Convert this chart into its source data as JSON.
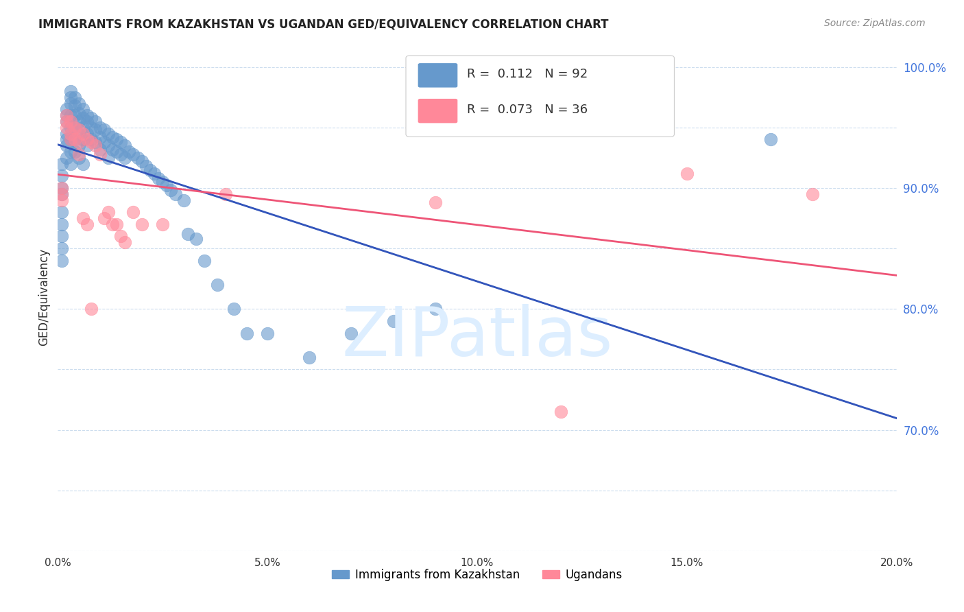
{
  "title": "IMMIGRANTS FROM KAZAKHSTAN VS UGANDAN GED/EQUIVALENCY CORRELATION CHART",
  "source": "Source: ZipAtlas.com",
  "ylabel": "GED/Equivalency",
  "legend_label_1": "Immigrants from Kazakhstan",
  "legend_label_2": "Ugandans",
  "R1": 0.112,
  "N1": 92,
  "R2": 0.073,
  "N2": 36,
  "x_min": 0.0,
  "x_max": 0.2,
  "y_min": 0.6,
  "y_max": 1.02,
  "blue_color": "#6699CC",
  "pink_color": "#FF8899",
  "blue_line_color": "#3355BB",
  "pink_line_color": "#EE5577",
  "axis_label_color": "#4477DD",
  "title_color": "#222222",
  "watermark_color": "#DDEEFF",
  "blue_scatter_x": [
    0.001,
    0.001,
    0.001,
    0.001,
    0.001,
    0.001,
    0.001,
    0.001,
    0.001,
    0.002,
    0.002,
    0.002,
    0.002,
    0.002,
    0.002,
    0.002,
    0.003,
    0.003,
    0.003,
    0.003,
    0.003,
    0.003,
    0.003,
    0.003,
    0.004,
    0.004,
    0.004,
    0.004,
    0.004,
    0.004,
    0.005,
    0.005,
    0.005,
    0.005,
    0.005,
    0.005,
    0.006,
    0.006,
    0.006,
    0.006,
    0.006,
    0.007,
    0.007,
    0.007,
    0.007,
    0.008,
    0.008,
    0.008,
    0.009,
    0.009,
    0.009,
    0.01,
    0.01,
    0.01,
    0.011,
    0.011,
    0.012,
    0.012,
    0.012,
    0.013,
    0.013,
    0.014,
    0.014,
    0.015,
    0.015,
    0.016,
    0.016,
    0.017,
    0.018,
    0.019,
    0.02,
    0.021,
    0.022,
    0.023,
    0.024,
    0.025,
    0.026,
    0.027,
    0.028,
    0.03,
    0.031,
    0.033,
    0.035,
    0.038,
    0.042,
    0.045,
    0.05,
    0.06,
    0.07,
    0.08,
    0.09,
    0.17
  ],
  "blue_scatter_y": [
    0.88,
    0.87,
    0.86,
    0.85,
    0.84,
    0.92,
    0.91,
    0.9,
    0.895,
    0.965,
    0.96,
    0.955,
    0.945,
    0.94,
    0.935,
    0.925,
    0.98,
    0.975,
    0.97,
    0.96,
    0.95,
    0.94,
    0.93,
    0.92,
    0.975,
    0.968,
    0.96,
    0.95,
    0.94,
    0.93,
    0.97,
    0.962,
    0.955,
    0.945,
    0.935,
    0.925,
    0.965,
    0.958,
    0.95,
    0.94,
    0.92,
    0.96,
    0.955,
    0.945,
    0.935,
    0.958,
    0.95,
    0.94,
    0.955,
    0.948,
    0.938,
    0.95,
    0.942,
    0.932,
    0.948,
    0.938,
    0.945,
    0.935,
    0.925,
    0.942,
    0.932,
    0.94,
    0.93,
    0.938,
    0.928,
    0.935,
    0.925,
    0.93,
    0.928,
    0.925,
    0.922,
    0.918,
    0.915,
    0.912,
    0.908,
    0.905,
    0.902,
    0.898,
    0.895,
    0.89,
    0.862,
    0.858,
    0.84,
    0.82,
    0.8,
    0.78,
    0.78,
    0.76,
    0.78,
    0.79,
    0.8,
    0.94
  ],
  "pink_scatter_x": [
    0.001,
    0.001,
    0.001,
    0.002,
    0.002,
    0.002,
    0.003,
    0.003,
    0.003,
    0.004,
    0.004,
    0.005,
    0.005,
    0.005,
    0.006,
    0.006,
    0.007,
    0.007,
    0.008,
    0.008,
    0.009,
    0.01,
    0.011,
    0.012,
    0.013,
    0.014,
    0.015,
    0.016,
    0.018,
    0.02,
    0.025,
    0.04,
    0.09,
    0.12,
    0.15,
    0.18
  ],
  "pink_scatter_y": [
    0.9,
    0.895,
    0.89,
    0.96,
    0.955,
    0.95,
    0.955,
    0.945,
    0.94,
    0.95,
    0.94,
    0.948,
    0.938,
    0.928,
    0.945,
    0.875,
    0.94,
    0.87,
    0.938,
    0.8,
    0.935,
    0.928,
    0.875,
    0.88,
    0.87,
    0.87,
    0.86,
    0.855,
    0.88,
    0.87,
    0.87,
    0.895,
    0.888,
    0.715,
    0.912,
    0.895
  ]
}
